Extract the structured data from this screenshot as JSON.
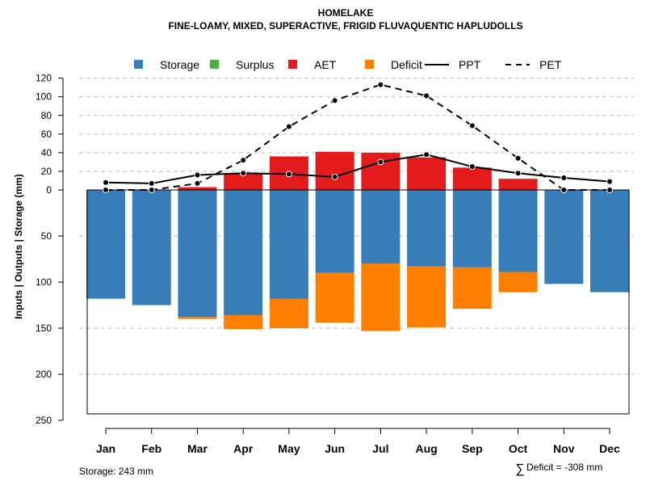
{
  "chart_data": {
    "type": "bar",
    "title": "HOMELAKE",
    "subtitle": "FINE-LOAMY, MIXED, SUPERACTIVE, FRIGID FLUVAQUENTIC HAPLUDOLLS",
    "ylabel": "Inputs | Outputs | Storage     (mm)",
    "categories": [
      "Jan",
      "Feb",
      "Mar",
      "Apr",
      "May",
      "Jun",
      "Jul",
      "Aug",
      "Sep",
      "Oct",
      "Nov",
      "Dec"
    ],
    "yticks_upper": [
      "120",
      "100",
      "80",
      "60",
      "40",
      "20",
      "0"
    ],
    "yticks_lower": [
      "50",
      "100",
      "150",
      "200",
      "250"
    ],
    "upper_range": [
      0,
      120
    ],
    "lower_range": [
      0,
      250
    ],
    "legend": [
      {
        "label": "Storage",
        "kind": "box",
        "color": "#377EB8"
      },
      {
        "label": "Surplus",
        "kind": "box",
        "color": "#4DAF4A"
      },
      {
        "label": "AET",
        "kind": "box",
        "color": "#E41A1C"
      },
      {
        "label": "Deficit",
        "kind": "box",
        "color": "#FF7F00"
      },
      {
        "label": "PPT",
        "kind": "solid",
        "color": "#000000"
      },
      {
        "label": "PET",
        "kind": "dashed",
        "color": "#000000"
      }
    ],
    "series": [
      {
        "name": "Storage",
        "color": "#377EB8",
        "values": [
          118,
          125,
          138,
          136,
          118,
          90,
          80,
          83,
          84,
          89,
          102,
          111
        ]
      },
      {
        "name": "Deficit",
        "color": "#FF7F00",
        "values": [
          0,
          0,
          2,
          15,
          32,
          54,
          73,
          66,
          45,
          22,
          0,
          0
        ]
      },
      {
        "name": "AET",
        "color": "#E41A1C",
        "values": [
          0,
          0,
          3,
          18,
          36,
          41,
          40,
          35,
          24,
          12,
          0,
          0
        ]
      },
      {
        "name": "Surplus",
        "color": "#4DAF4A",
        "values": [
          0,
          0,
          0,
          0,
          0,
          0,
          0,
          0,
          0,
          0,
          0,
          0
        ]
      },
      {
        "name": "PPT",
        "color": "#000000",
        "values": [
          8,
          7,
          16,
          18,
          17,
          14,
          30,
          38,
          25,
          18,
          13,
          9
        ]
      },
      {
        "name": "PET",
        "color": "#000000",
        "values": [
          0,
          0,
          7,
          32,
          68,
          96,
          113,
          101,
          69,
          34,
          0,
          0
        ]
      }
    ],
    "grid": true
  },
  "footer": {
    "storage": "Storage: 243 mm",
    "deficit_symbol": "∑",
    "deficit": "Deficit = -308 mm"
  }
}
